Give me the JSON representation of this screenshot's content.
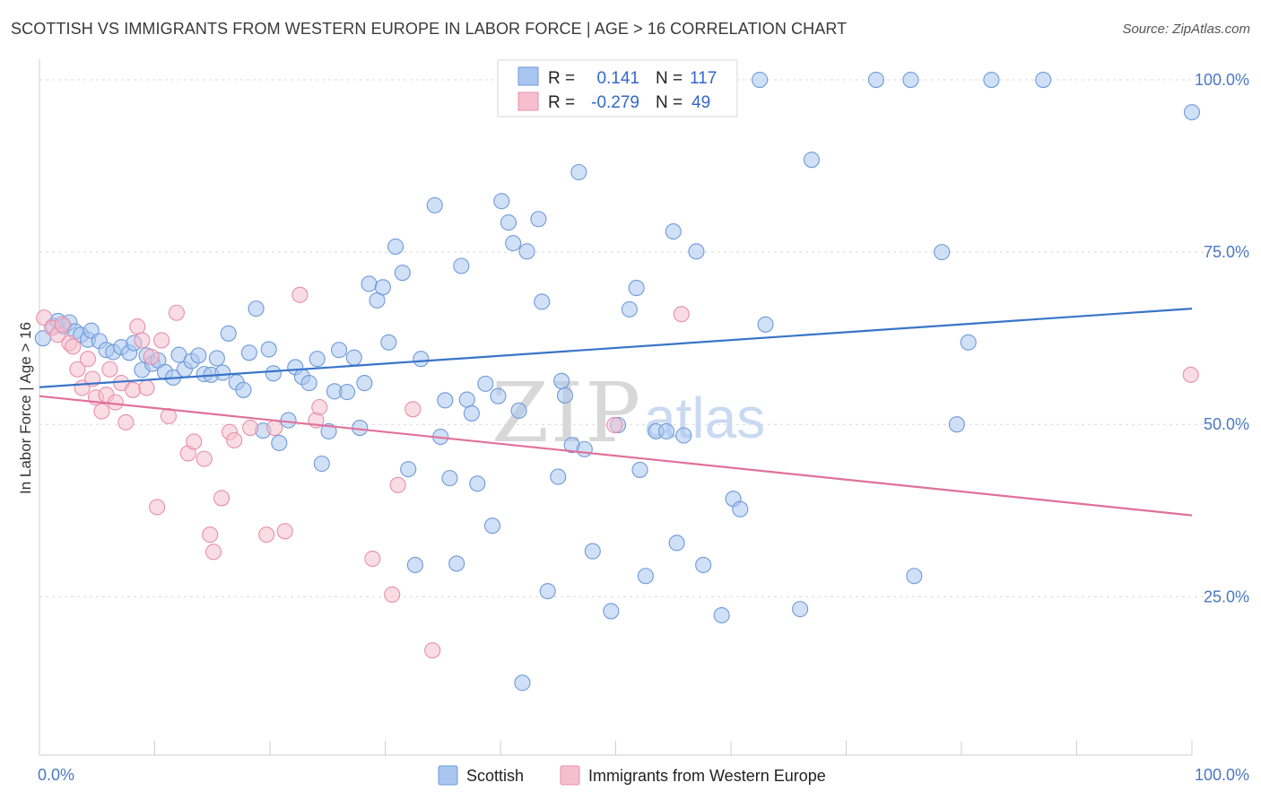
{
  "title": "SCOTTISH VS IMMIGRANTS FROM WESTERN EUROPE IN LABOR FORCE | AGE > 16 CORRELATION CHART",
  "source": "Source: ZipAtlas.com",
  "colors": {
    "scottish_fill": "#a9c6f0",
    "scottish_stroke": "#6f9ad8",
    "scottish_line": "#3a74c8",
    "immigrants_fill": "#f6bfd0",
    "immigrants_stroke": "#e78fab",
    "immigrants_line": "#e0719a",
    "axis_text": "#4a78c2",
    "grid": "#d9d9d9"
  },
  "stats_box": {
    "rows": [
      {
        "series": "Scottish",
        "r_label": "R =",
        "r_value": "0.141",
        "n_label": "N =",
        "n_value": "117"
      },
      {
        "series": "Immigrants from Western Europe",
        "r_label": "R =",
        "r_value": "-0.279",
        "n_label": "N =",
        "n_value": "49"
      }
    ]
  },
  "watermark": {
    "zip": "ZIP",
    "atlas": "atlas"
  },
  "chart_data": {
    "type": "scatter",
    "title": "SCOTTISH VS IMMIGRANTS FROM WESTERN EUROPE IN LABOR FORCE | AGE > 16 CORRELATION CHART",
    "xlabel": "",
    "ylabel": "In Labor Force | Age > 16",
    "xlim": [
      0,
      100
    ],
    "ylim": [
      2,
      103
    ],
    "x_tick_labels": [
      "0.0%",
      "100.0%"
    ],
    "y_ticks": [
      25,
      50,
      75,
      100
    ],
    "y_tick_labels": [
      "25.0%",
      "50.0%",
      "75.0%",
      "100.0%"
    ],
    "grid": true,
    "legend_position": "bottom",
    "series": [
      {
        "name": "Scottish",
        "trend": {
          "x": [
            0,
            100
          ],
          "y": [
            55.4,
            66.8
          ]
        },
        "points": [
          [
            0.3,
            62.5
          ],
          [
            1.2,
            64.3
          ],
          [
            1.6,
            65.0
          ],
          [
            2.1,
            64.2
          ],
          [
            2.6,
            64.8
          ],
          [
            3.1,
            63.5
          ],
          [
            3.6,
            63.0
          ],
          [
            4.2,
            62.3
          ],
          [
            4.5,
            63.6
          ],
          [
            5.2,
            62.1
          ],
          [
            5.8,
            60.8
          ],
          [
            6.4,
            60.5
          ],
          [
            7.1,
            61.2
          ],
          [
            7.8,
            60.4
          ],
          [
            8.2,
            61.8
          ],
          [
            8.9,
            57.9
          ],
          [
            9.3,
            60.0
          ],
          [
            9.8,
            58.8
          ],
          [
            10.3,
            59.3
          ],
          [
            10.9,
            57.6
          ],
          [
            11.6,
            56.8
          ],
          [
            12.1,
            60.1
          ],
          [
            12.6,
            58.0
          ],
          [
            13.2,
            59.2
          ],
          [
            13.8,
            60.0
          ],
          [
            14.3,
            57.3
          ],
          [
            14.9,
            57.2
          ],
          [
            15.4,
            59.6
          ],
          [
            15.9,
            57.5
          ],
          [
            16.4,
            63.2
          ],
          [
            17.1,
            56.1
          ],
          [
            17.7,
            55.0
          ],
          [
            18.2,
            60.4
          ],
          [
            18.8,
            66.8
          ],
          [
            19.4,
            49.1
          ],
          [
            19.9,
            60.9
          ],
          [
            20.3,
            57.4
          ],
          [
            20.8,
            47.3
          ],
          [
            21.6,
            50.6
          ],
          [
            22.2,
            58.3
          ],
          [
            22.8,
            56.9
          ],
          [
            23.4,
            56.0
          ],
          [
            24.1,
            59.5
          ],
          [
            24.5,
            44.3
          ],
          [
            25.1,
            49.0
          ],
          [
            25.6,
            54.8
          ],
          [
            26.0,
            60.8
          ],
          [
            26.7,
            54.7
          ],
          [
            27.3,
            59.7
          ],
          [
            27.8,
            49.5
          ],
          [
            28.2,
            56.0
          ],
          [
            28.6,
            70.4
          ],
          [
            29.3,
            68.0
          ],
          [
            29.8,
            69.9
          ],
          [
            30.3,
            61.9
          ],
          [
            30.9,
            75.8
          ],
          [
            31.5,
            72.0
          ],
          [
            32.0,
            43.5
          ],
          [
            32.6,
            29.6
          ],
          [
            33.1,
            59.5
          ],
          [
            34.3,
            81.8
          ],
          [
            34.8,
            48.2
          ],
          [
            35.2,
            53.5
          ],
          [
            35.6,
            42.2
          ],
          [
            36.2,
            29.8
          ],
          [
            36.6,
            73.0
          ],
          [
            37.1,
            53.6
          ],
          [
            37.5,
            51.6
          ],
          [
            38.0,
            41.4
          ],
          [
            38.7,
            55.9
          ],
          [
            39.3,
            35.3
          ],
          [
            39.8,
            54.1
          ],
          [
            40.1,
            82.4
          ],
          [
            40.7,
            79.3
          ],
          [
            41.1,
            76.3
          ],
          [
            41.6,
            52.0
          ],
          [
            41.9,
            12.5
          ],
          [
            42.3,
            75.1
          ],
          [
            43.3,
            79.8
          ],
          [
            43.6,
            67.8
          ],
          [
            44.1,
            25.8
          ],
          [
            45.0,
            42.4
          ],
          [
            45.3,
            56.3
          ],
          [
            45.6,
            54.2
          ],
          [
            46.2,
            47.0
          ],
          [
            46.8,
            86.6
          ],
          [
            47.3,
            46.4
          ],
          [
            48.0,
            31.6
          ],
          [
            48.8,
            100.0
          ],
          [
            49.6,
            22.9
          ],
          [
            50.2,
            49.9
          ],
          [
            51.2,
            66.7
          ],
          [
            51.8,
            69.8
          ],
          [
            52.1,
            43.4
          ],
          [
            52.6,
            28.0
          ],
          [
            53.5,
            49.0
          ],
          [
            54.4,
            49.0
          ],
          [
            55.0,
            78.0
          ],
          [
            55.3,
            32.8
          ],
          [
            55.9,
            48.4
          ],
          [
            57.0,
            75.1
          ],
          [
            57.6,
            29.6
          ],
          [
            59.2,
            22.3
          ],
          [
            60.2,
            39.2
          ],
          [
            60.8,
            37.7
          ],
          [
            62.5,
            100.0
          ],
          [
            63.0,
            64.5
          ],
          [
            66.0,
            23.2
          ],
          [
            67.0,
            88.4
          ],
          [
            72.6,
            100.0
          ],
          [
            75.6,
            100.0
          ],
          [
            75.9,
            28.0
          ],
          [
            78.3,
            75.0
          ],
          [
            79.6,
            50.0
          ],
          [
            80.6,
            61.9
          ],
          [
            82.6,
            100.0
          ],
          [
            87.1,
            100.0
          ],
          [
            100.0,
            95.3
          ]
        ]
      },
      {
        "name": "Immigrants from Western Europe",
        "trend": {
          "x": [
            0,
            100
          ],
          "y": [
            54.1,
            36.8
          ]
        },
        "points": [
          [
            0.4,
            65.5
          ],
          [
            1.1,
            64.0
          ],
          [
            1.6,
            63.0
          ],
          [
            2.0,
            64.5
          ],
          [
            2.6,
            61.8
          ],
          [
            2.9,
            61.3
          ],
          [
            3.3,
            58.0
          ],
          [
            3.7,
            55.3
          ],
          [
            4.2,
            59.5
          ],
          [
            4.6,
            56.6
          ],
          [
            4.9,
            53.9
          ],
          [
            5.4,
            51.9
          ],
          [
            5.8,
            54.3
          ],
          [
            6.1,
            58.0
          ],
          [
            6.6,
            53.2
          ],
          [
            7.1,
            56.0
          ],
          [
            7.5,
            50.3
          ],
          [
            8.1,
            55.0
          ],
          [
            8.5,
            64.2
          ],
          [
            8.9,
            62.2
          ],
          [
            9.3,
            55.3
          ],
          [
            9.7,
            59.8
          ],
          [
            10.2,
            38.0
          ],
          [
            10.6,
            62.2
          ],
          [
            11.2,
            51.2
          ],
          [
            11.9,
            66.2
          ],
          [
            12.9,
            45.8
          ],
          [
            13.4,
            47.5
          ],
          [
            14.3,
            45.0
          ],
          [
            14.8,
            34.0
          ],
          [
            15.1,
            31.5
          ],
          [
            15.8,
            39.3
          ],
          [
            16.5,
            48.9
          ],
          [
            16.9,
            47.7
          ],
          [
            18.3,
            49.5
          ],
          [
            19.7,
            34.0
          ],
          [
            20.4,
            49.5
          ],
          [
            21.3,
            34.5
          ],
          [
            22.6,
            68.8
          ],
          [
            24.0,
            50.6
          ],
          [
            24.3,
            52.5
          ],
          [
            28.9,
            30.5
          ],
          [
            30.6,
            25.3
          ],
          [
            31.1,
            41.2
          ],
          [
            32.4,
            52.2
          ],
          [
            34.1,
            17.2
          ],
          [
            49.9,
            49.9
          ],
          [
            55.7,
            66.0
          ],
          [
            99.9,
            57.2
          ]
        ]
      }
    ]
  }
}
